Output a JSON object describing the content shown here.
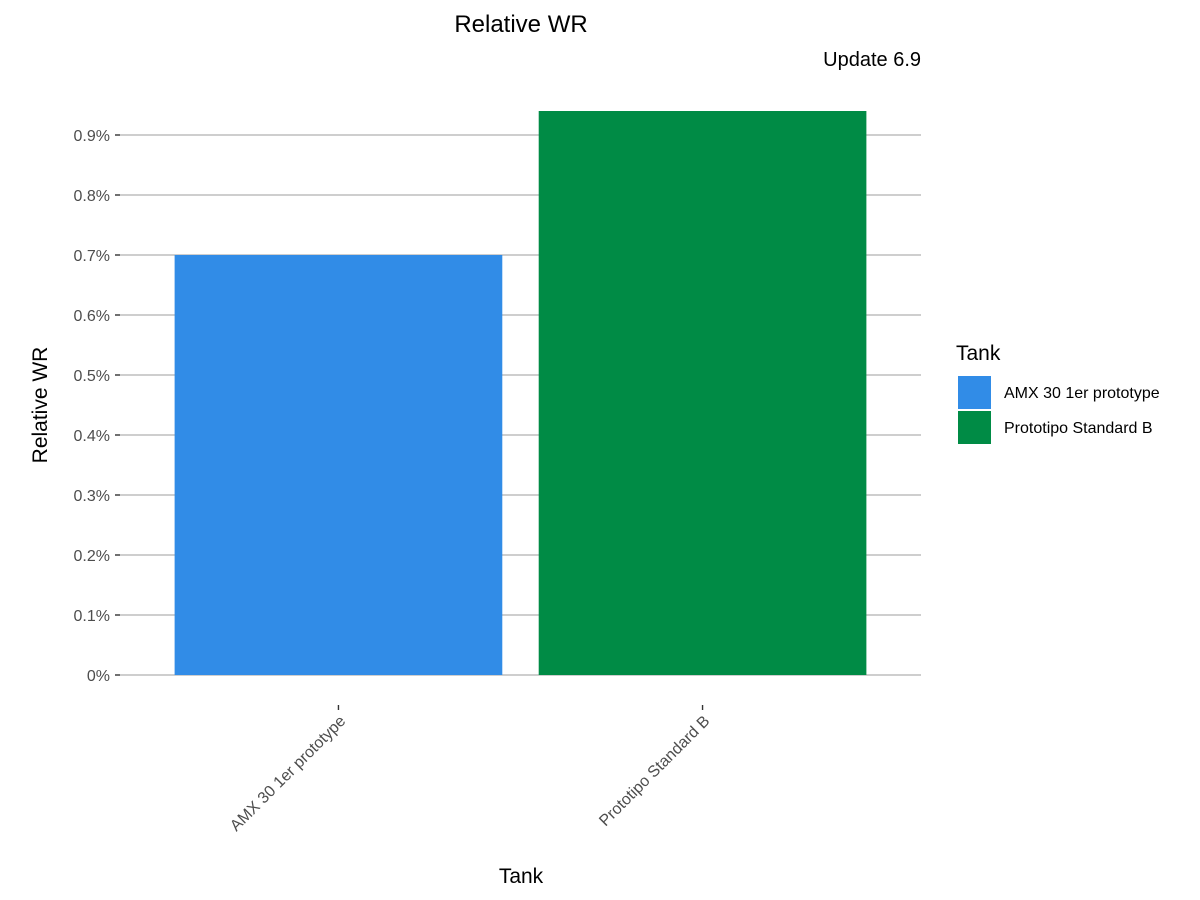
{
  "chart_data": {
    "type": "bar",
    "title": "Relative WR",
    "subtitle": "Update 6.9",
    "xlabel": "Tank",
    "ylabel": "Relative WR",
    "categories": [
      "AMX 30 1er prototype",
      "Prototipo Standard B"
    ],
    "values": [
      0.7,
      0.94
    ],
    "colors": [
      "#318ce7",
      "#008b45"
    ],
    "ylim": [
      0,
      0.95
    ],
    "yticks": [
      0,
      0.1,
      0.2,
      0.3,
      0.4,
      0.5,
      0.6,
      0.7,
      0.8,
      0.9
    ],
    "ytick_labels": [
      "0%",
      "0.1%",
      "0.2%",
      "0.3%",
      "0.4%",
      "0.5%",
      "0.6%",
      "0.7%",
      "0.8%",
      "0.9%"
    ],
    "grid": true,
    "legend": {
      "title": "Tank",
      "position": "right",
      "entries": [
        "AMX 30 1er prototype",
        "Prototipo Standard B"
      ]
    }
  }
}
